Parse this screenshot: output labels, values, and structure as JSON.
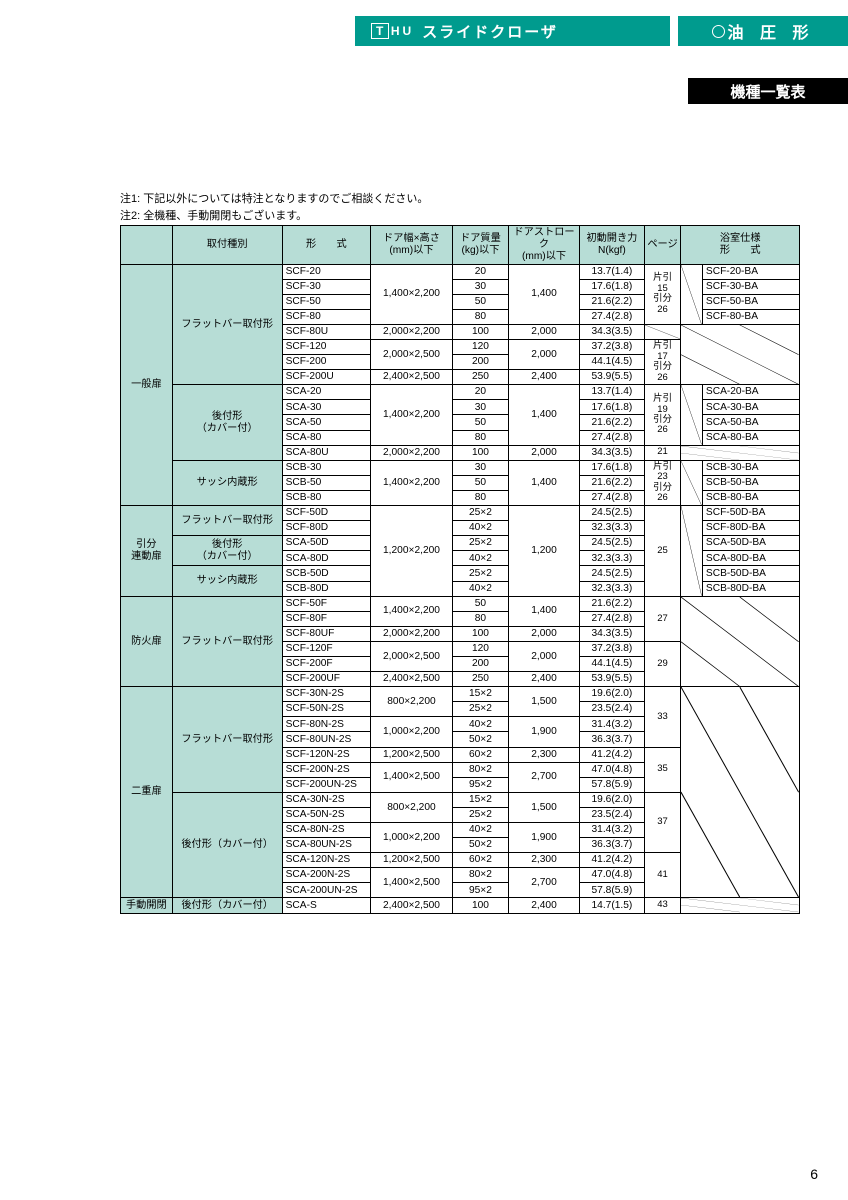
{
  "header": {
    "logo_box": "T",
    "logo_suffix": "HU",
    "product": "スライドクローザ",
    "right": "油 圧 形"
  },
  "black_band": "機種一覧表",
  "notes": {
    "n1": "注1: 下記以外については特注となりますのでご相談ください。",
    "n2": "注2: 全機種、手動開閉もございます。"
  },
  "columns": {
    "c1": "",
    "c2": "取付種別",
    "c3": "形　　式",
    "c4a": "ドア幅×高さ",
    "c4b": "(mm)以下",
    "c5a": "ドア質量",
    "c5b": "(kg)以下",
    "c6a": "ドアストローク",
    "c6b": "(mm)以下",
    "c7a": "初動開き力",
    "c7b": "N(kgf)",
    "c8": "ページ",
    "c9a": "浴室仕様",
    "c9b": "形　　式"
  },
  "groups": {
    "ippan": "一般扉",
    "hikiwake": "引分\n連動扉",
    "bouka": "防火扉",
    "niju": "二重扉",
    "shudou": "手動開閉"
  },
  "mount": {
    "flat": "フラットバー取付形",
    "ato": "後付形\n（カバー付）",
    "ato1": "後付形（カバー付）",
    "sash": "サッシ内蔵形"
  },
  "pages": {
    "p1": "片引\n15\n引分\n26",
    "p2": "片引\n17\n引分\n26",
    "p3": "片引\n19\n引分\n26",
    "p4": "21",
    "p5": "片引\n23\n引分\n26",
    "p6": "25",
    "p7": "27",
    "p8": "29",
    "p9": "33",
    "p10": "35",
    "p11": "37",
    "p12": "41",
    "p13": "43"
  },
  "rows": [
    {
      "m": "SCF-20",
      "wh": "1,400×2,200",
      "mass": "20",
      "stroke": "1,400",
      "force": "13.7(1.4)",
      "bath": "SCF-20-BA"
    },
    {
      "m": "SCF-30",
      "mass": "30",
      "force": "17.6(1.8)",
      "bath": "SCF-30-BA"
    },
    {
      "m": "SCF-50",
      "mass": "50",
      "force": "21.6(2.2)",
      "bath": "SCF-50-BA"
    },
    {
      "m": "SCF-80",
      "mass": "80",
      "force": "27.4(2.8)",
      "bath": "SCF-80-BA"
    },
    {
      "m": "SCF-80U",
      "wh": "2,000×2,200",
      "mass": "100",
      "stroke": "2,000",
      "force": "34.3(3.5)"
    },
    {
      "m": "SCF-120",
      "wh": "2,000×2,500",
      "mass": "120",
      "stroke": "2,000",
      "force": "37.2(3.8)"
    },
    {
      "m": "SCF-200",
      "mass": "200",
      "force": "44.1(4.5)"
    },
    {
      "m": "SCF-200U",
      "wh": "2,400×2,500",
      "mass": "250",
      "stroke": "2,400",
      "force": "53.9(5.5)"
    },
    {
      "m": "SCA-20",
      "wh": "1,400×2,200",
      "mass": "20",
      "stroke": "1,400",
      "force": "13.7(1.4)",
      "bath": "SCA-20-BA"
    },
    {
      "m": "SCA-30",
      "mass": "30",
      "force": "17.6(1.8)",
      "bath": "SCA-30-BA"
    },
    {
      "m": "SCA-50",
      "mass": "50",
      "force": "21.6(2.2)",
      "bath": "SCA-50-BA"
    },
    {
      "m": "SCA-80",
      "mass": "80",
      "force": "27.4(2.8)",
      "bath": "SCA-80-BA"
    },
    {
      "m": "SCA-80U",
      "wh": "2,000×2,200",
      "mass": "100",
      "stroke": "2,000",
      "force": "34.3(3.5)"
    },
    {
      "m": "SCB-30",
      "wh": "1,400×2,200",
      "mass": "30",
      "stroke": "1,400",
      "force": "17.6(1.8)",
      "bath": "SCB-30-BA"
    },
    {
      "m": "SCB-50",
      "mass": "50",
      "force": "21.6(2.2)",
      "bath": "SCB-50-BA"
    },
    {
      "m": "SCB-80",
      "mass": "80",
      "force": "27.4(2.8)",
      "bath": "SCB-80-BA"
    },
    {
      "m": "SCF-50D",
      "wh": "1,200×2,200",
      "mass": "25×2",
      "stroke": "1,200",
      "force": "24.5(2.5)",
      "bath": "SCF-50D-BA"
    },
    {
      "m": "SCF-80D",
      "mass": "40×2",
      "force": "32.3(3.3)",
      "bath": "SCF-80D-BA"
    },
    {
      "m": "SCA-50D",
      "mass": "25×2",
      "force": "24.5(2.5)",
      "bath": "SCA-50D-BA"
    },
    {
      "m": "SCA-80D",
      "mass": "40×2",
      "force": "32.3(3.3)",
      "bath": "SCA-80D-BA"
    },
    {
      "m": "SCB-50D",
      "mass": "25×2",
      "force": "24.5(2.5)",
      "bath": "SCB-50D-BA"
    },
    {
      "m": "SCB-80D",
      "mass": "40×2",
      "force": "32.3(3.3)",
      "bath": "SCB-80D-BA"
    },
    {
      "m": "SCF-50F",
      "wh": "1,400×2,200",
      "mass": "50",
      "stroke": "1,400",
      "force": "21.6(2.2)"
    },
    {
      "m": "SCF-80F",
      "mass": "80",
      "force": "27.4(2.8)"
    },
    {
      "m": "SCF-80UF",
      "wh": "2,000×2,200",
      "mass": "100",
      "stroke": "2,000",
      "force": "34.3(3.5)"
    },
    {
      "m": "SCF-120F",
      "wh": "2,000×2,500",
      "mass": "120",
      "stroke": "2,000",
      "force": "37.2(3.8)"
    },
    {
      "m": "SCF-200F",
      "mass": "200",
      "force": "44.1(4.5)"
    },
    {
      "m": "SCF-200UF",
      "wh": "2,400×2,500",
      "mass": "250",
      "stroke": "2,400",
      "force": "53.9(5.5)"
    },
    {
      "m": "SCF-30N-2S",
      "wh": "800×2,200",
      "mass": "15×2",
      "stroke": "1,500",
      "force": "19.6(2.0)"
    },
    {
      "m": "SCF-50N-2S",
      "mass": "25×2",
      "force": "23.5(2.4)"
    },
    {
      "m": "SCF-80N-2S",
      "wh": "1,000×2,200",
      "mass": "40×2",
      "stroke": "1,900",
      "force": "31.4(3.2)"
    },
    {
      "m": "SCF-80UN-2S",
      "mass": "50×2",
      "force": "36.3(3.7)"
    },
    {
      "m": "SCF-120N-2S",
      "wh": "1,200×2,500",
      "mass": "60×2",
      "stroke": "2,300",
      "force": "41.2(4.2)"
    },
    {
      "m": "SCF-200N-2S",
      "wh": "1,400×2,500",
      "mass": "80×2",
      "stroke": "2,700",
      "force": "47.0(4.8)"
    },
    {
      "m": "SCF-200UN-2S",
      "mass": "95×2",
      "force": "57.8(5.9)"
    },
    {
      "m": "SCA-30N-2S",
      "wh": "800×2,200",
      "mass": "15×2",
      "stroke": "1,500",
      "force": "19.6(2.0)"
    },
    {
      "m": "SCA-50N-2S",
      "mass": "25×2",
      "force": "23.5(2.4)"
    },
    {
      "m": "SCA-80N-2S",
      "wh": "1,000×2,200",
      "mass": "40×2",
      "stroke": "1,900",
      "force": "31.4(3.2)"
    },
    {
      "m": "SCA-80UN-2S",
      "mass": "50×2",
      "force": "36.3(3.7)"
    },
    {
      "m": "SCA-120N-2S",
      "wh": "1,200×2,500",
      "mass": "60×2",
      "stroke": "2,300",
      "force": "41.2(4.2)"
    },
    {
      "m": "SCA-200N-2S",
      "wh": "1,400×2,500",
      "mass": "80×2",
      "stroke": "2,700",
      "force": "47.0(4.8)"
    },
    {
      "m": "SCA-200UN-2S",
      "mass": "95×2",
      "force": "57.8(5.9)"
    },
    {
      "m": "SCA-S",
      "wh": "2,400×2,500",
      "mass": "100",
      "stroke": "2,400",
      "force": "14.7(1.5)"
    }
  ],
  "page_number": "6",
  "colors": {
    "teal": "#009b8e",
    "tealLight": "#b7ddd6"
  }
}
